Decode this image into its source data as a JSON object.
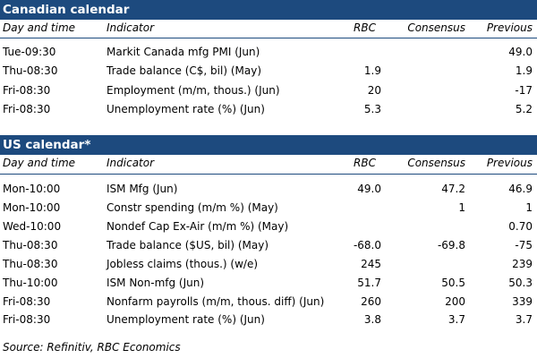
{
  "colors": {
    "header_bg": "#1d4a7e",
    "header_text": "#ffffff"
  },
  "canadian": {
    "title": "Canadian calendar",
    "columns": {
      "day": "Day and time",
      "indicator": "Indicator",
      "rbc": "RBC",
      "consensus": "Consensus",
      "previous": "Previous"
    },
    "rows": [
      {
        "day": "Tue-09:30",
        "indicator": "Markit Canada mfg PMI (Jun)",
        "rbc": "",
        "consensus": "",
        "previous": "49.0"
      },
      {
        "day": "Thu-08:30",
        "indicator": "Trade balance (C$, bil) (May)",
        "rbc": "1.9",
        "consensus": "",
        "previous": "1.9"
      },
      {
        "day": "Fri-08:30",
        "indicator": "Employment (m/m, thous.) (Jun)",
        "rbc": "20",
        "consensus": "",
        "previous": "-17"
      },
      {
        "day": "Fri-08:30",
        "indicator": "Unemployment rate (%) (Jun)",
        "rbc": "5.3",
        "consensus": "",
        "previous": "5.2"
      }
    ]
  },
  "us": {
    "title": "US calendar*",
    "columns": {
      "day": "Day and time",
      "indicator": "Indicator",
      "rbc": "RBC",
      "consensus": "Consensus",
      "previous": "Previous"
    },
    "rows": [
      {
        "day": "Mon-10:00",
        "indicator": "ISM Mfg (Jun)",
        "rbc": "49.0",
        "consensus": "47.2",
        "previous": "46.9"
      },
      {
        "day": "Mon-10:00",
        "indicator": "Constr spending (m/m %) (May)",
        "rbc": "",
        "consensus": "1",
        "previous": "1"
      },
      {
        "day": "Wed-10:00",
        "indicator": "Nondef Cap Ex-Air (m/m %) (May)",
        "rbc": "",
        "consensus": "",
        "previous": "0.70"
      },
      {
        "day": "Thu-08:30",
        "indicator": "Trade balance ($US, bil) (May)",
        "rbc": "-68.0",
        "consensus": "-69.8",
        "previous": "-75"
      },
      {
        "day": "Thu-08:30",
        "indicator": "Jobless claims (thous.) (w/e)",
        "rbc": "245",
        "consensus": "",
        "previous": "239"
      },
      {
        "day": "Thu-10:00",
        "indicator": "ISM Non-mfg (Jun)",
        "rbc": "51.7",
        "consensus": "50.5",
        "previous": "50.3"
      },
      {
        "day": "Fri-08:30",
        "indicator": "Nonfarm payrolls (m/m, thous. diff) (Jun)",
        "rbc": "260",
        "consensus": "200",
        "previous": "339"
      },
      {
        "day": "Fri-08:30",
        "indicator": "Unemployment rate (%) (Jun)",
        "rbc": "3.8",
        "consensus": "3.7",
        "previous": "3.7"
      }
    ]
  },
  "source": "Source: Refinitiv,  RBC Economics"
}
